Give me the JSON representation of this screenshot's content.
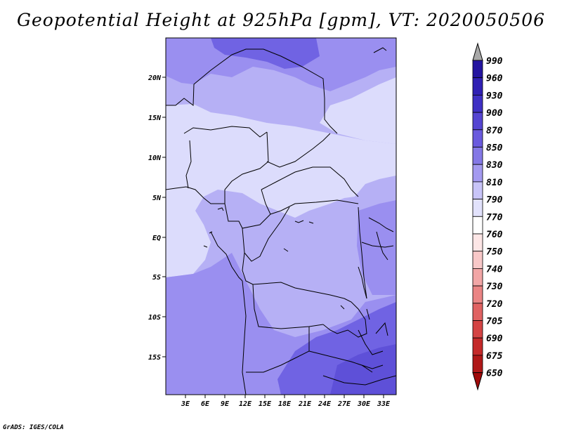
{
  "title": "Geopotential Height at 925hPa [gpm], VT: 2020050506",
  "credit": "GrADS: IGES/COLA",
  "map": {
    "lat_ticks": [
      "20N",
      "15N",
      "10N",
      "5N",
      "EQ",
      "5S",
      "10S",
      "15S"
    ],
    "lon_ticks": [
      "3E",
      "6E",
      "9E",
      "12E",
      "15E",
      "18E",
      "21E",
      "24E",
      "27E",
      "30E",
      "33E"
    ]
  },
  "colorbar": {
    "levels": [
      "990",
      "960",
      "930",
      "900",
      "870",
      "850",
      "830",
      "810",
      "790",
      "770",
      "760",
      "750",
      "740",
      "730",
      "720",
      "705",
      "690",
      "675",
      "650"
    ],
    "colors": [
      "#1a0a8c",
      "#2414a0",
      "#3020b4",
      "#3f30c4",
      "#5545d2",
      "#6a5ade",
      "#8478e6",
      "#a49af0",
      "#c8c4f8",
      "#e2e2fc",
      "#ffffff",
      "#fde6e6",
      "#f8c8c8",
      "#f2a6a6",
      "#ea8484",
      "#e06262",
      "#d44444",
      "#c42a2a",
      "#b01818",
      "#a00a0a"
    ]
  },
  "colors": {
    "field_dark": "#7063e3",
    "field_mid": "#9a8ff0",
    "field_light": "#b6b0f5",
    "field_pale": "#dcdcfc",
    "border": "#000000"
  }
}
